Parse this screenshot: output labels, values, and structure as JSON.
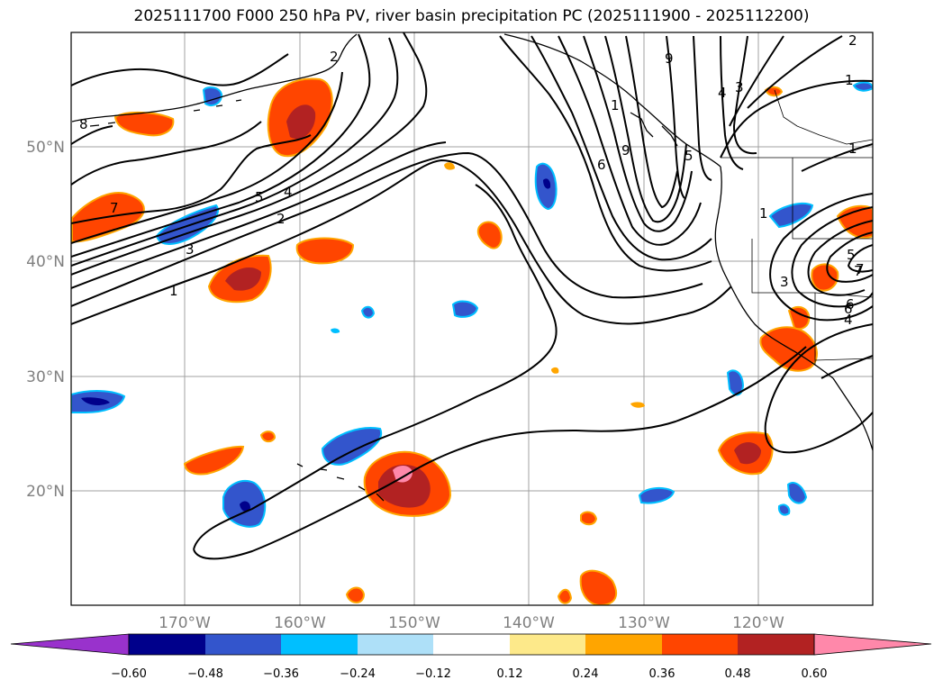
{
  "title": "2025111700 F000 250 hPa PV, river basin precipitation PC (2025111900 - 2025112200)",
  "map": {
    "lat_labels": [
      {
        "lat": 50,
        "text": "50°N"
      },
      {
        "lat": 40,
        "text": "40°N"
      },
      {
        "lat": 30,
        "text": "30°N"
      },
      {
        "lat": 20,
        "text": "20°N"
      }
    ],
    "lon_labels": [
      {
        "lon": -170,
        "text": "170°W"
      },
      {
        "lon": -160,
        "text": "160°W"
      },
      {
        "lon": -150,
        "text": "150°W"
      },
      {
        "lon": -140,
        "text": "140°W"
      },
      {
        "lon": -130,
        "text": "130°W"
      },
      {
        "lon": -120,
        "text": "120°W"
      }
    ],
    "lon_range": [
      -180,
      -110
    ],
    "lat_range": [
      10,
      60
    ],
    "gridlines": true,
    "pv_contour_labels": [
      "1",
      "2",
      "3",
      "4",
      "5",
      "6",
      "7",
      "8",
      "9",
      "1",
      "2",
      "3",
      "4",
      "5",
      "6",
      "7",
      "9",
      "1",
      "3",
      "4",
      "5",
      "6",
      "7",
      "1",
      "1",
      "2"
    ]
  },
  "colorbar": {
    "ticks": [
      "−0.60",
      "−0.48",
      "−0.36",
      "−0.24",
      "−0.12",
      "0.12",
      "0.24",
      "0.36",
      "0.48",
      "0.60"
    ],
    "colors": {
      "lt_060": "#9932cc",
      "m060_m048": "#00008b",
      "m048_m036": "#3355cc",
      "m036_m024": "#00bfff",
      "m024_m012": "#aee0f8",
      "m012_012": "#ffffff",
      "p012_p024": "#fde98a",
      "p024_p036": "#ffa500",
      "p036_p048": "#ff4500",
      "p048_p060": "#b22222",
      "gt_060": "#ff88aa"
    },
    "extend": "both"
  }
}
